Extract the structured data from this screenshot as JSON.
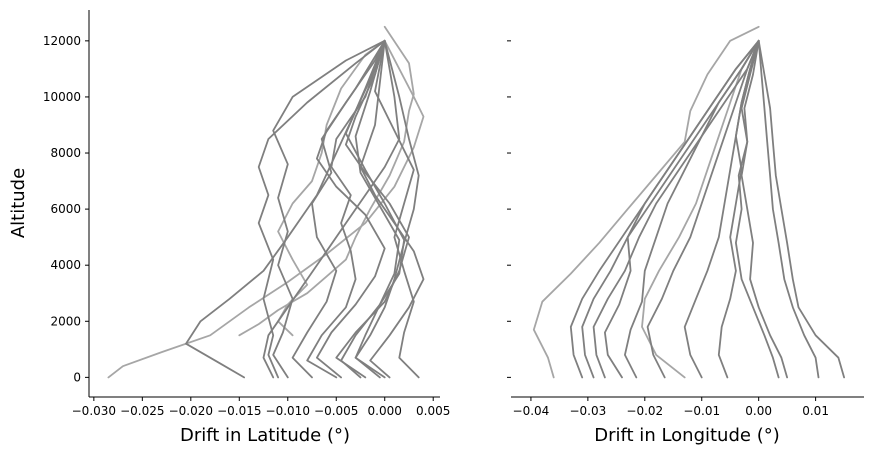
{
  "colors": {
    "trace": "#7f7f7f",
    "trace_light": "#a6a6a6",
    "axis": "#000000"
  },
  "chart_data": [
    {
      "type": "line",
      "xlabel": "Drift in Latitude (°)",
      "ylabel": "Altitude",
      "xlim": [
        -0.0305,
        0.0057
      ],
      "ylim": [
        -700,
        13100
      ],
      "xticks": [
        -0.03,
        -0.025,
        -0.02,
        -0.015,
        -0.01,
        -0.005,
        0.0,
        0.005
      ],
      "xtick_labels": [
        "−0.030",
        "−0.025",
        "−0.020",
        "−0.015",
        "−0.010",
        "−0.005",
        "0.000",
        "0.005"
      ],
      "yticks": [
        0,
        2000,
        4000,
        6000,
        8000,
        10000,
        12000
      ],
      "ytick_labels": [
        "0",
        "2000",
        "4000",
        "6000",
        "8000",
        "10000",
        "12000"
      ],
      "series": [
        {
          "x": [
            -0.0145,
            -0.017,
            -0.0205,
            -0.019,
            -0.016,
            -0.0125,
            -0.01,
            -0.007,
            -0.005,
            -0.003,
            -0.001,
            0.0
          ],
          "y": [
            0,
            500,
            1200,
            2000,
            2800,
            3800,
            5000,
            6500,
            8000,
            9500,
            11000,
            12000
          ]
        },
        {
          "x": [
            -0.0115,
            -0.0125,
            -0.012,
            -0.01,
            -0.008,
            -0.006,
            -0.004,
            -0.002,
            0.0,
            0.0015,
            0.001,
            0.0
          ],
          "y": [
            0,
            700,
            1500,
            2500,
            3500,
            4500,
            5500,
            6500,
            7500,
            8500,
            10000,
            12000
          ]
        },
        {
          "x": [
            -0.011,
            -0.012,
            -0.0115,
            -0.0125,
            -0.0115,
            -0.013,
            -0.012,
            -0.013,
            -0.012,
            -0.008,
            -0.003,
            0.0
          ],
          "y": [
            0,
            800,
            1500,
            2800,
            4200,
            5500,
            6500,
            7500,
            8500,
            9800,
            11200,
            12000
          ]
        },
        {
          "x": [
            -0.01,
            -0.0115,
            -0.0105,
            -0.0095,
            -0.011,
            -0.01,
            -0.011,
            -0.01,
            -0.0115,
            -0.0095,
            -0.004,
            0.0
          ],
          "y": [
            0,
            800,
            1600,
            2800,
            4000,
            5200,
            6400,
            7600,
            8800,
            10000,
            11300,
            12000
          ]
        },
        {
          "x": [
            -0.005,
            -0.008,
            -0.0065,
            -0.004,
            -0.003,
            -0.0035,
            -0.0045,
            -0.0035,
            -0.0055,
            -0.005,
            -0.002,
            0.0
          ],
          "y": [
            0,
            600,
            1500,
            2500,
            3500,
            4500,
            5500,
            6500,
            7500,
            8500,
            10000,
            12000
          ]
        },
        {
          "x": [
            -0.0045,
            -0.007,
            -0.0055,
            -0.003,
            -0.001,
            0.0,
            -0.002,
            -0.005,
            -0.007,
            -0.006,
            -0.003,
            0.0
          ],
          "y": [
            0,
            700,
            1600,
            2600,
            3600,
            4600,
            5800,
            6800,
            7800,
            8800,
            10300,
            12000
          ]
        },
        {
          "x": [
            -0.002,
            -0.005,
            -0.003,
            0.0,
            0.0015,
            0.0025,
            0.0005,
            -0.002,
            -0.004,
            -0.003,
            -0.001,
            0.0
          ],
          "y": [
            0,
            700,
            1600,
            2700,
            3800,
            5000,
            6200,
            7300,
            8300,
            9300,
            10800,
            12000
          ]
        },
        {
          "x": [
            0.0005,
            -0.0015,
            0.0005,
            0.0025,
            0.004,
            0.003,
            0.001,
            -0.001,
            -0.0025,
            -0.001,
            0.0
          ],
          "y": [
            0,
            600,
            1500,
            2500,
            3500,
            4500,
            5500,
            6500,
            7500,
            9000,
            12000
          ]
        },
        {
          "x": [
            0.0035,
            0.0015,
            0.002,
            0.003,
            0.002,
            0.001,
            0.002,
            0.003,
            0.001,
            -0.001,
            0.0
          ],
          "y": [
            0,
            700,
            1600,
            2700,
            3800,
            5000,
            6200,
            7400,
            8800,
            10200,
            12000
          ]
        },
        {
          "x": [
            -0.0005,
            -0.003,
            -0.0015,
            0.0,
            0.001,
            0.002,
            0.003,
            0.0035,
            0.0025,
            0.0015,
            0.0
          ],
          "y": [
            0,
            700,
            1500,
            2500,
            3500,
            4800,
            6000,
            7200,
            8500,
            10000,
            12000
          ]
        },
        {
          "x": [
            -0.0075,
            -0.0095,
            -0.008,
            -0.006,
            -0.005,
            -0.007,
            -0.0075,
            -0.0055,
            -0.0065,
            -0.004,
            -0.001,
            0.0
          ],
          "y": [
            0,
            700,
            1600,
            2700,
            3800,
            5000,
            6200,
            7300,
            8500,
            9800,
            11300,
            12000
          ]
        },
        {
          "x": [
            0.0,
            -0.003,
            -0.002,
            -0.0005,
            0.001,
            0.0015,
            -0.0005,
            -0.0025,
            -0.003,
            -0.0015,
            0.0
          ],
          "y": [
            0,
            700,
            1500,
            2600,
            3700,
            4900,
            6100,
            7300,
            8600,
            10200,
            12000
          ]
        },
        {
          "x": [
            -0.0025,
            -0.0045,
            -0.003,
            -0.0005,
            0.0015,
            0.002,
            0.0,
            -0.002,
            -0.004,
            -0.002,
            0.0
          ],
          "y": [
            0,
            600,
            1500,
            2600,
            3700,
            4900,
            6200,
            7400,
            8700,
            10300,
            12000
          ]
        }
      ],
      "light_series": [
        {
          "x": [
            -0.0285,
            -0.027,
            -0.023,
            -0.018,
            -0.014,
            -0.01,
            -0.006,
            -0.002,
            0.001,
            0.003,
            0.004,
            0.003,
            0.0
          ],
          "y": [
            0,
            400,
            900,
            1500,
            2500,
            3400,
            4400,
            5500,
            6800,
            8200,
            9300,
            10000,
            12000
          ]
        },
        {
          "x": [
            -0.015,
            -0.013,
            -0.011,
            -0.008,
            -0.006,
            -0.004,
            -0.003,
            -0.0015,
            0.0005,
            0.002,
            0.0025,
            0.003,
            0.0025,
            0.0
          ],
          "y": [
            1500,
            1900,
            2400,
            3000,
            3600,
            4200,
            5000,
            6000,
            7200,
            8400,
            9500,
            10100,
            11200,
            12500
          ]
        },
        {
          "x": [
            -0.0095,
            -0.011,
            -0.01,
            -0.008,
            -0.0095,
            -0.011,
            -0.0095,
            -0.0075,
            -0.0065,
            -0.006,
            -0.0045,
            -0.002,
            0.0
          ],
          "y": [
            1500,
            2000,
            2600,
            3300,
            4200,
            5200,
            6200,
            7000,
            8000,
            9000,
            10300,
            11500,
            12000
          ]
        }
      ]
    },
    {
      "type": "line",
      "xlabel": "Drift in Longitude (°)",
      "ylabel": "",
      "xlim": [
        -0.0435,
        0.0185
      ],
      "ylim": [
        -700,
        13100
      ],
      "xticks": [
        -0.04,
        -0.03,
        -0.02,
        -0.01,
        0.0,
        0.01
      ],
      "xtick_labels": [
        "−0.04",
        "−0.03",
        "−0.02",
        "−0.01",
        "0.00",
        "0.01"
      ],
      "yticks": [
        0,
        2000,
        4000,
        6000,
        8000,
        10000,
        12000
      ],
      "ytick_labels": [
        "",
        "",
        "",
        "",
        "",
        "",
        ""
      ],
      "series": [
        {
          "x": [
            -0.031,
            -0.0325,
            -0.033,
            -0.031,
            -0.028,
            -0.024,
            -0.02,
            -0.016,
            -0.012,
            -0.008,
            -0.004,
            0.0
          ],
          "y": [
            0,
            800,
            1800,
            2800,
            3800,
            5000,
            6200,
            7400,
            8600,
            9800,
            11000,
            12000
          ]
        },
        {
          "x": [
            -0.029,
            -0.0305,
            -0.031,
            -0.029,
            -0.026,
            -0.023,
            -0.019,
            -0.015,
            -0.011,
            -0.007,
            -0.003,
            0.0
          ],
          "y": [
            0,
            800,
            1800,
            2800,
            3800,
            5000,
            6200,
            7400,
            8600,
            9800,
            11000,
            12000
          ]
        },
        {
          "x": [
            -0.027,
            -0.0285,
            -0.029,
            -0.0265,
            -0.0235,
            -0.021,
            -0.018,
            -0.014,
            -0.01,
            -0.006,
            -0.002,
            0.0
          ],
          "y": [
            0,
            800,
            1800,
            2800,
            3800,
            5000,
            6200,
            7400,
            8600,
            9800,
            11000,
            12000
          ]
        },
        {
          "x": [
            -0.024,
            -0.0265,
            -0.027,
            -0.0245,
            -0.0225,
            -0.023,
            -0.02,
            -0.016,
            -0.012,
            -0.008,
            -0.004,
            0.0
          ],
          "y": [
            0,
            800,
            1600,
            2600,
            3800,
            5000,
            6200,
            7400,
            8600,
            9800,
            11000,
            12000
          ]
        },
        {
          "x": [
            -0.0215,
            -0.0235,
            -0.0225,
            -0.0205,
            -0.02,
            -0.018,
            -0.016,
            -0.013,
            -0.01,
            -0.007,
            -0.003,
            0.0
          ],
          "y": [
            0,
            800,
            1700,
            2700,
            3800,
            5000,
            6200,
            7400,
            8600,
            9800,
            11000,
            12000
          ]
        },
        {
          "x": [
            -0.0165,
            -0.0185,
            -0.0195,
            -0.017,
            -0.015,
            -0.012,
            -0.01,
            -0.008,
            -0.006,
            -0.004,
            -0.002,
            0.0
          ],
          "y": [
            0,
            800,
            1800,
            2800,
            3800,
            5000,
            6200,
            7400,
            8600,
            9800,
            11000,
            12000
          ]
        },
        {
          "x": [
            -0.01,
            -0.012,
            -0.013,
            -0.011,
            -0.009,
            -0.007,
            -0.006,
            -0.005,
            -0.004,
            -0.003,
            -0.0015,
            0.0
          ],
          "y": [
            0,
            800,
            1800,
            2800,
            3800,
            5000,
            6200,
            7400,
            8600,
            9800,
            11000,
            12000
          ]
        },
        {
          "x": [
            -0.0055,
            -0.007,
            -0.0065,
            -0.005,
            -0.004,
            -0.005,
            -0.004,
            -0.003,
            -0.004,
            -0.003,
            -0.0015,
            0.0
          ],
          "y": [
            0,
            800,
            1800,
            2800,
            3800,
            5000,
            6200,
            7400,
            8600,
            9800,
            11000,
            12000
          ]
        },
        {
          "x": [
            0.0035,
            0.0025,
            0.001,
            -0.001,
            -0.003,
            -0.004,
            -0.003,
            -0.0035,
            -0.002,
            -0.003,
            -0.0015,
            0.0
          ],
          "y": [
            0,
            700,
            1500,
            2500,
            3500,
            4800,
            6000,
            7200,
            8400,
            9600,
            10800,
            12000
          ]
        },
        {
          "x": [
            0.005,
            0.004,
            0.002,
            0.0,
            -0.0015,
            -0.001,
            -0.002,
            -0.003,
            -0.002,
            -0.0025,
            -0.001,
            0.0
          ],
          "y": [
            0,
            700,
            1500,
            2500,
            3500,
            4800,
            6000,
            7200,
            8400,
            9600,
            10800,
            12000
          ]
        },
        {
          "x": [
            0.0105,
            0.01,
            0.008,
            0.006,
            0.0045,
            0.0035,
            0.0025,
            0.002,
            0.0015,
            0.001,
            0.0005,
            0.0
          ],
          "y": [
            0,
            700,
            1500,
            2500,
            3500,
            4800,
            6000,
            7200,
            8400,
            9600,
            10800,
            12000
          ]
        },
        {
          "x": [
            0.015,
            0.014,
            0.01,
            0.007,
            0.006,
            0.005,
            0.004,
            0.003,
            0.0025,
            0.002,
            0.001,
            0.0
          ],
          "y": [
            0,
            700,
            1500,
            2500,
            3500,
            4800,
            6000,
            7200,
            8400,
            9600,
            10800,
            12000
          ]
        }
      ],
      "light_series": [
        {
          "x": [
            -0.036,
            -0.037,
            -0.0395,
            -0.038,
            -0.033,
            -0.028,
            -0.023,
            -0.018,
            -0.013,
            -0.012,
            -0.009,
            -0.005,
            0.0
          ],
          "y": [
            0,
            700,
            1700,
            2700,
            3700,
            4800,
            6000,
            7200,
            8400,
            9500,
            10800,
            12000,
            12500
          ]
        },
        {
          "x": [
            -0.013,
            -0.018,
            -0.0205,
            -0.02,
            -0.0175,
            -0.014,
            -0.011,
            -0.009,
            -0.007,
            -0.005,
            -0.003,
            0.0
          ],
          "y": [
            0,
            800,
            1800,
            2800,
            3800,
            5000,
            6200,
            7400,
            8600,
            9800,
            11000,
            12000
          ]
        }
      ]
    }
  ]
}
